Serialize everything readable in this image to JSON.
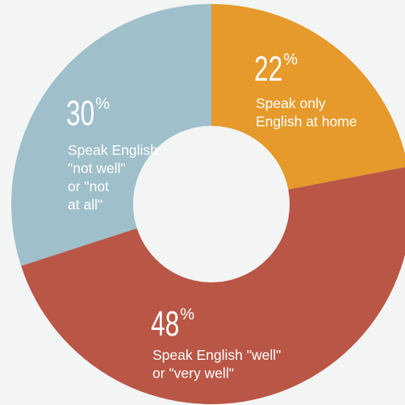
{
  "chart_data": {
    "type": "donut",
    "categories": [
      [
        "Speak only",
        "English at home"
      ],
      [
        "Speak English \"well\"",
        "or \"very well\""
      ],
      [
        "Speak English",
        "\"not well\"",
        "or \"not",
        "at all\""
      ]
    ],
    "values": [
      22,
      48,
      30
    ],
    "unit": "%",
    "colors": [
      "#e59a2b",
      "#b95645",
      "#9fbfca"
    ]
  }
}
